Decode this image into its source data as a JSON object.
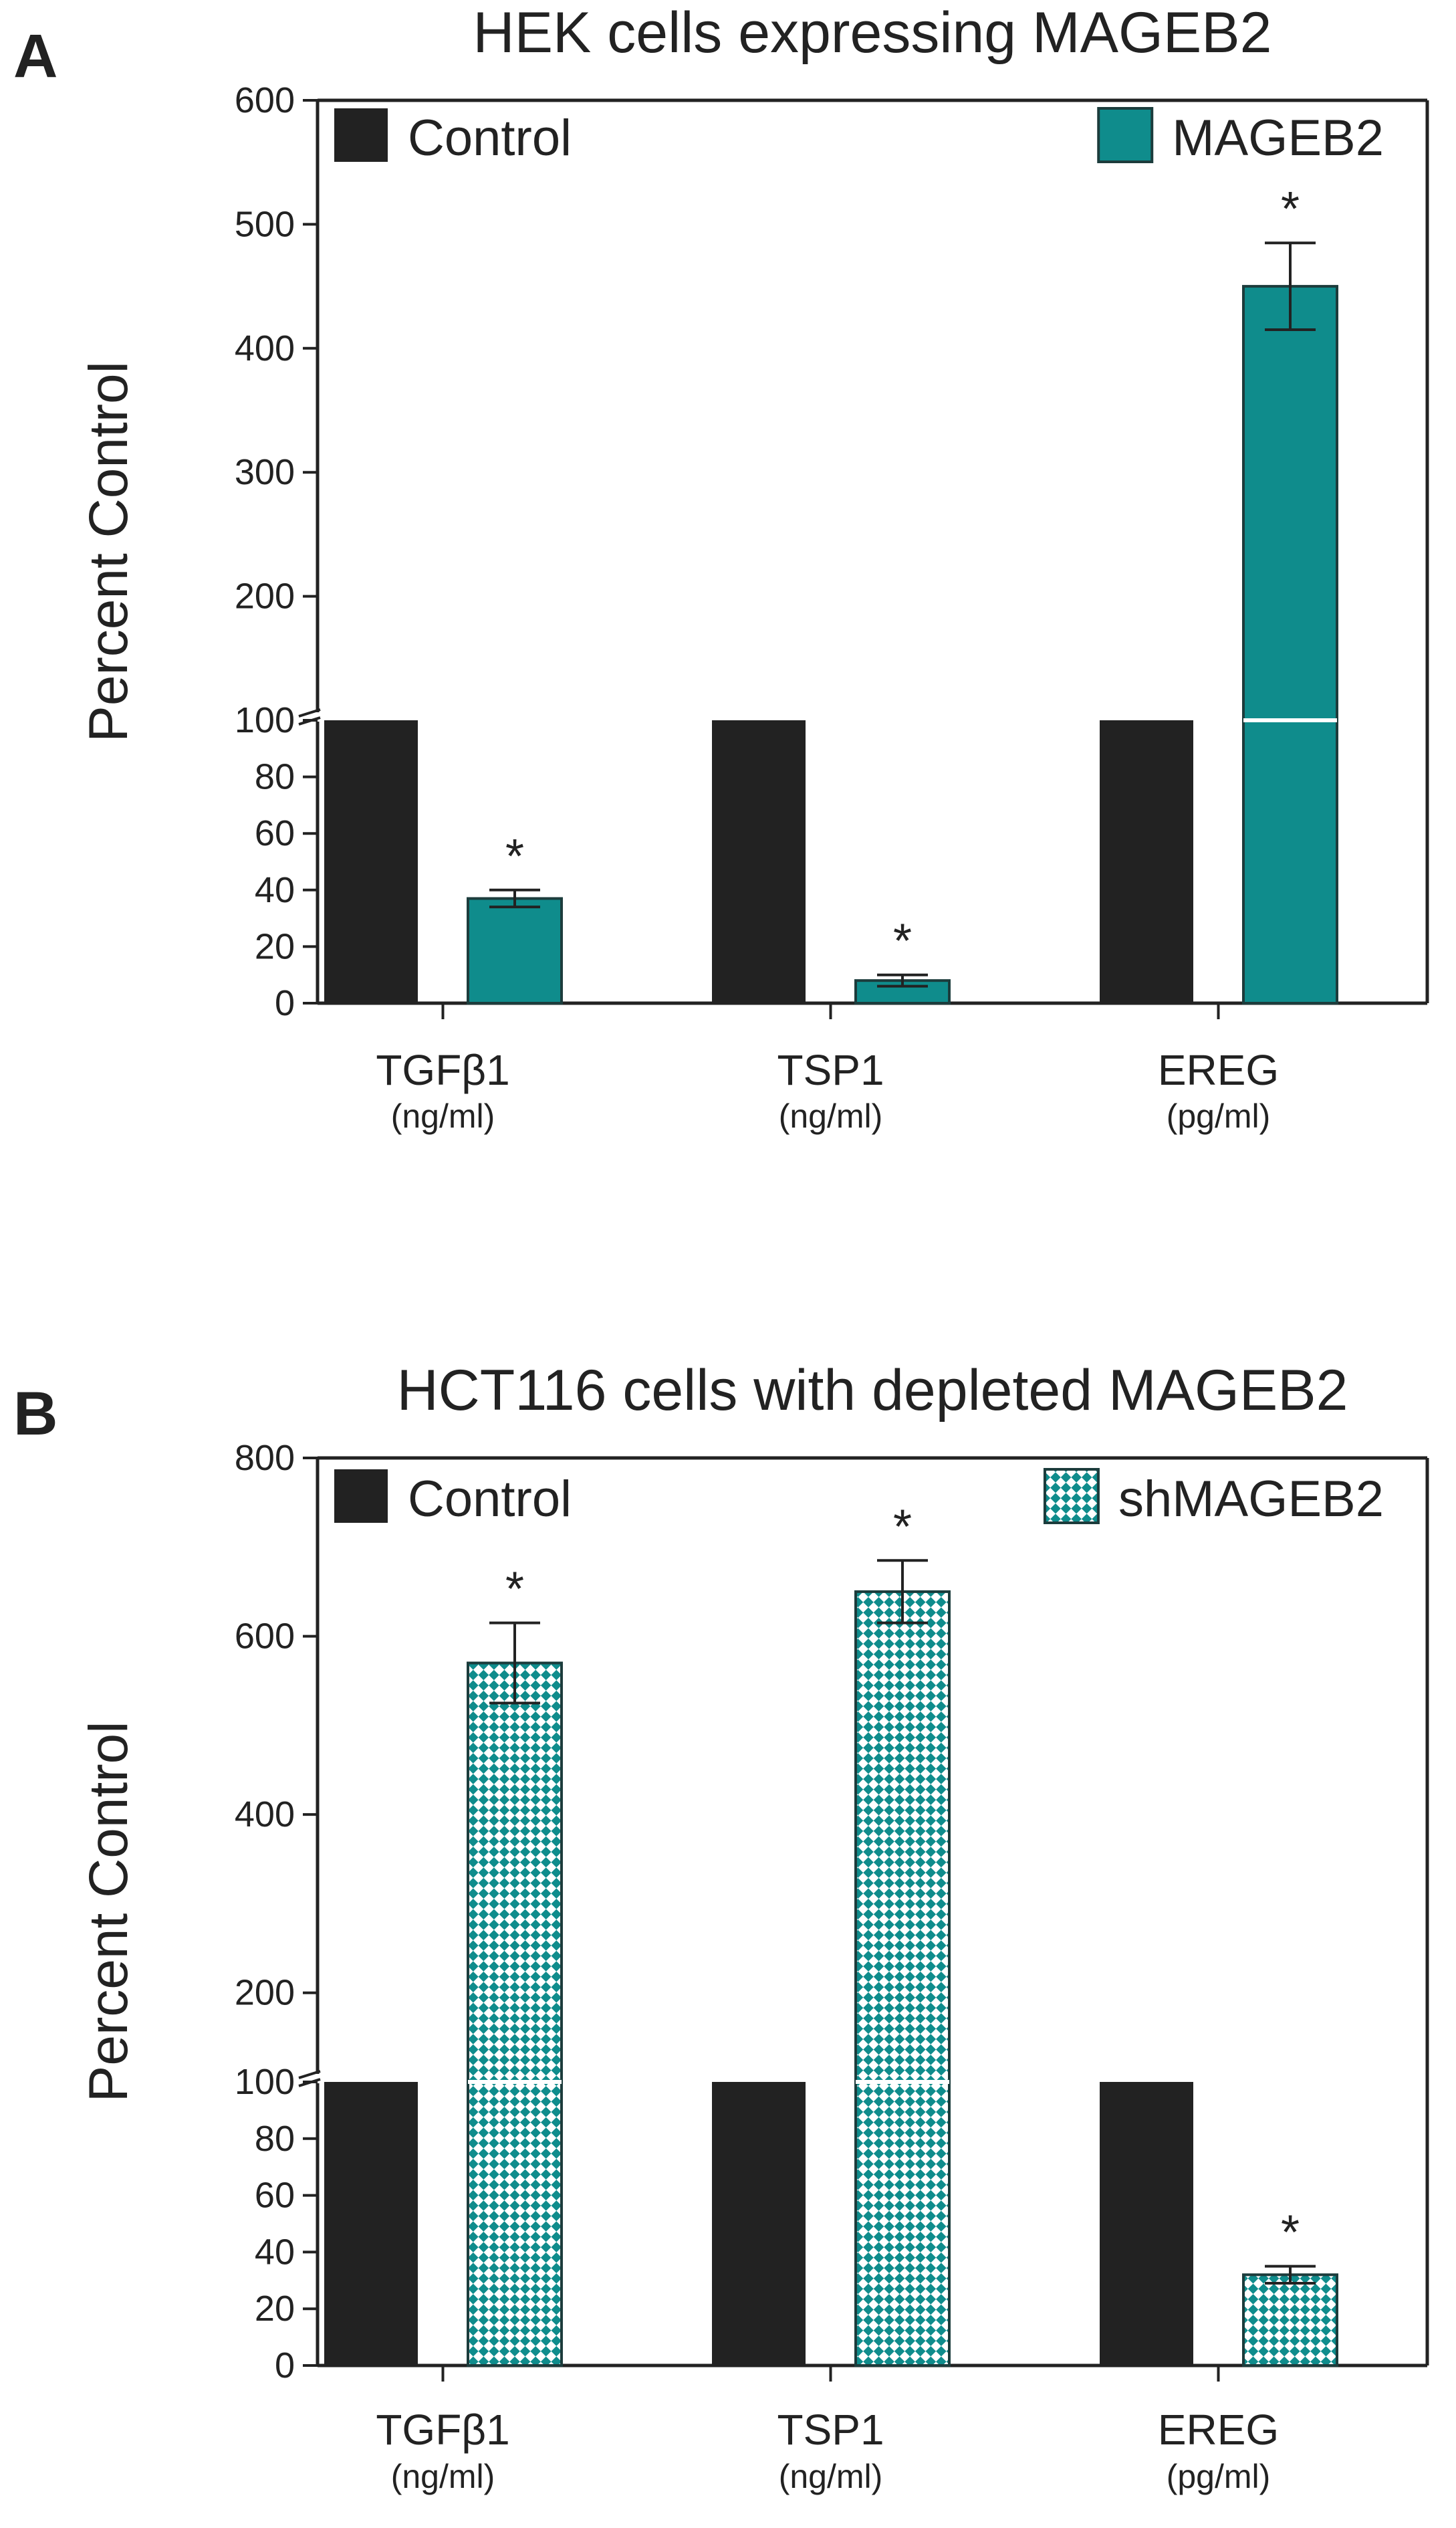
{
  "colors": {
    "control": "#222222",
    "teal": "#0f8c8c",
    "axis": "#222222"
  },
  "chart_data": [
    {
      "panel_label": "A",
      "title": "HEK cells expressing MAGEB2",
      "type": "bar",
      "ylabel": "Percent Control",
      "ylim": [
        0,
        600
      ],
      "axis_break": 100,
      "yticks_lower": [
        0,
        20,
        40,
        60,
        80,
        100
      ],
      "yticks_upper": [
        200,
        300,
        400,
        500,
        600
      ],
      "categories": [
        "TGFβ1",
        "TSP1",
        "EREG"
      ],
      "units": [
        "(ng/ml)",
        "(ng/ml)",
        "(pg/ml)"
      ],
      "series": [
        {
          "name": "Control",
          "pattern": "solid",
          "values": [
            100,
            100,
            100
          ],
          "errors": [
            null,
            null,
            null
          ],
          "stars": [
            false,
            false,
            false
          ]
        },
        {
          "name": "MAGEB2",
          "pattern": "solid-teal",
          "values": [
            37,
            8,
            450
          ],
          "errors": [
            3,
            2,
            35
          ],
          "stars": [
            true,
            true,
            true
          ]
        }
      ],
      "significance_label": "*",
      "legend": "top"
    },
    {
      "panel_label": "B",
      "title": "HCT116 cells with depleted MAGEB2",
      "type": "bar",
      "ylabel": "Percent Control",
      "ylim": [
        0,
        800
      ],
      "axis_break": 100,
      "yticks_lower": [
        0,
        20,
        40,
        60,
        80,
        100
      ],
      "yticks_upper": [
        200,
        400,
        600,
        800
      ],
      "categories": [
        "TGFβ1",
        "TSP1",
        "EREG"
      ],
      "units": [
        "(ng/ml)",
        "(ng/ml)",
        "(pg/ml)"
      ],
      "series": [
        {
          "name": "Control",
          "pattern": "solid",
          "values": [
            100,
            100,
            100
          ],
          "errors": [
            null,
            null,
            null
          ],
          "stars": [
            false,
            false,
            false
          ]
        },
        {
          "name": "shMAGEB2",
          "pattern": "checker-teal",
          "values": [
            570,
            650,
            32
          ],
          "errors": [
            45,
            35,
            3
          ],
          "stars": [
            true,
            true,
            true
          ]
        }
      ],
      "significance_label": "*",
      "legend": "top"
    }
  ]
}
